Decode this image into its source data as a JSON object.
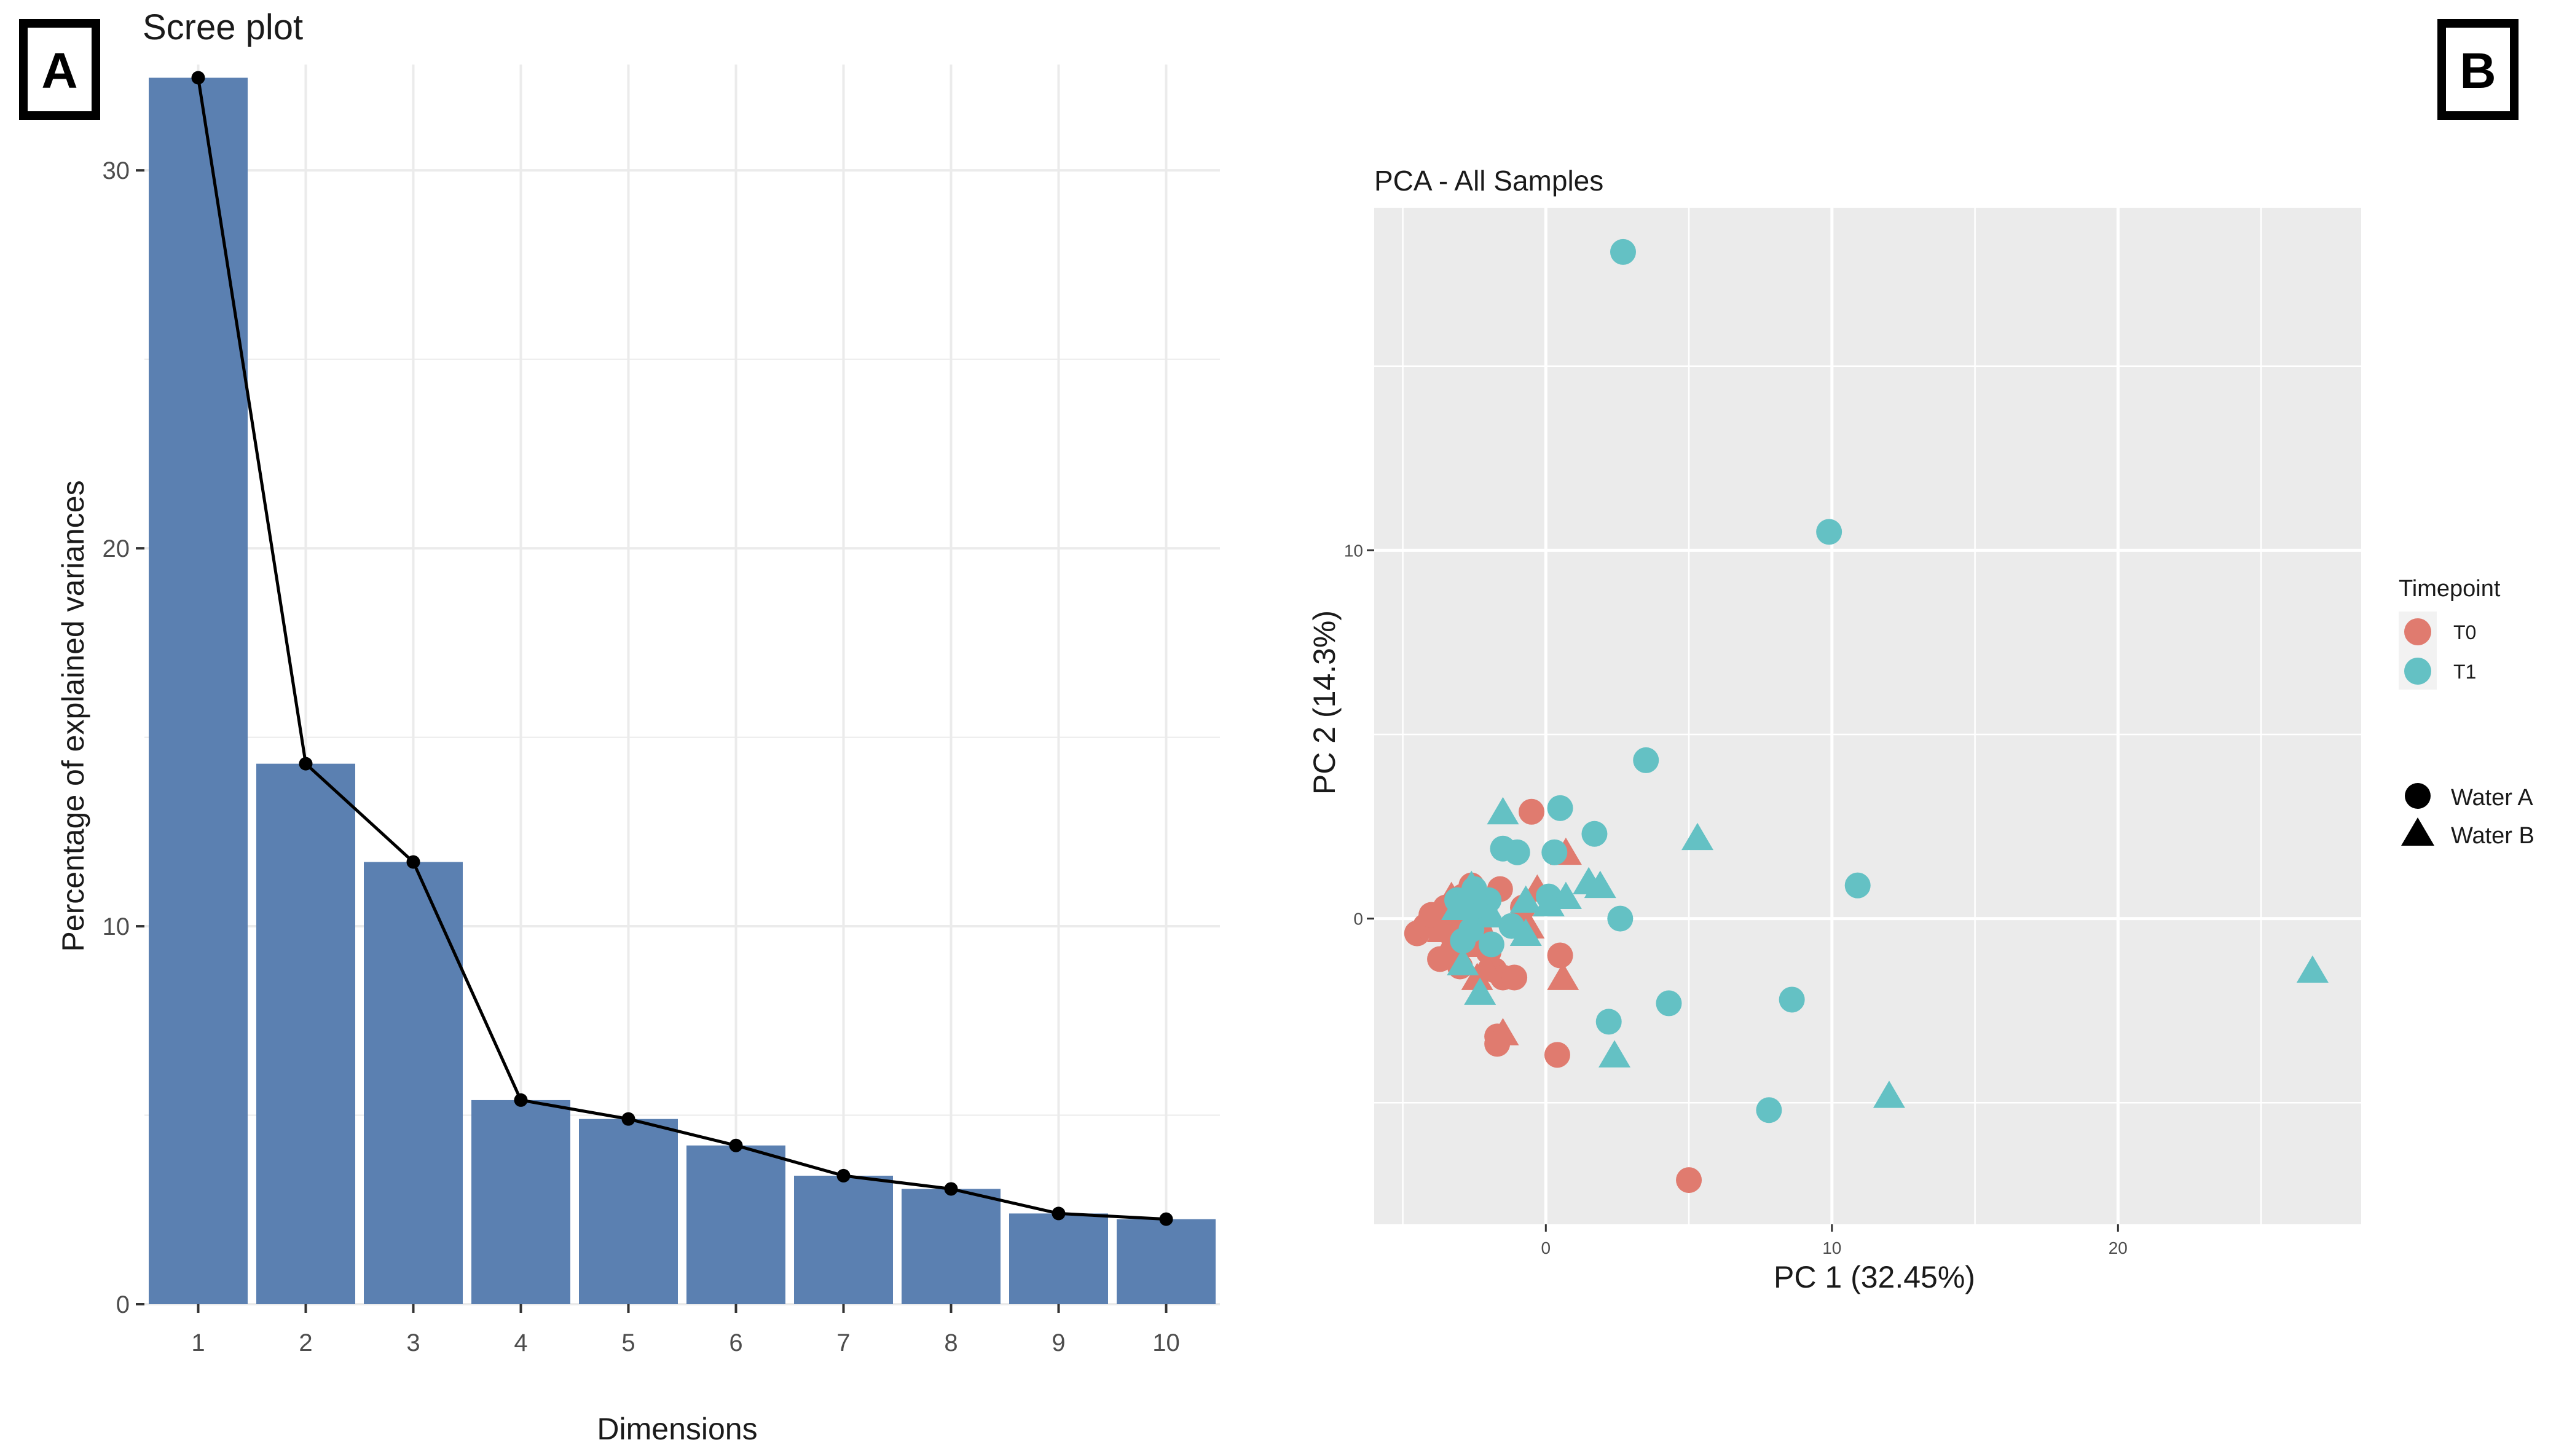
{
  "panels": {
    "a_label": "A",
    "b_label": "B"
  },
  "chart_data": [
    {
      "type": "bar",
      "title": "Scree plot",
      "xlabel": "Dimensions",
      "ylabel": "Percentage of explained variances",
      "categories": [
        "1",
        "2",
        "3",
        "4",
        "5",
        "6",
        "7",
        "8",
        "9",
        "10"
      ],
      "values": [
        32.45,
        14.3,
        11.7,
        5.4,
        4.9,
        4.2,
        3.4,
        3.05,
        2.4,
        2.25
      ],
      "line_overlay": true,
      "ylim": [
        0,
        32.8
      ],
      "yticks": [
        0,
        10,
        20,
        30
      ],
      "grid": true,
      "colors": {
        "bar": "#5b80b1",
        "line": "#000000",
        "grid": "#ebebeb",
        "axis_text": "#4d4d4d"
      }
    },
    {
      "type": "scatter",
      "title": "PCA - All Samples",
      "xlabel": "PC 1 (32.45%)",
      "ylabel": "PC 2 (14.3%)",
      "xlim": [
        -6,
        28.5
      ],
      "ylim": [
        -8.3,
        19.3
      ],
      "xticks": [
        0,
        10,
        20
      ],
      "yticks": [
        0,
        10
      ],
      "grid": true,
      "legend": {
        "position": "right",
        "color_title": "Timepoint",
        "color_items": [
          {
            "label": "T0",
            "color": "#e07b6f"
          },
          {
            "label": "T1",
            "color": "#64c1c4"
          }
        ],
        "shape_items": [
          {
            "label": "Water A",
            "shape": "circle"
          },
          {
            "label": "Water B",
            "shape": "triangle"
          }
        ]
      },
      "colors": {
        "panel_bg": "#ebebeb",
        "grid": "#ffffff",
        "T0": "#e07b6f",
        "T1": "#64c1c4",
        "axis_text": "#4d4d4d"
      },
      "series": [
        {
          "name": "T0 Water A",
          "color": "T0",
          "shape": "circle",
          "points": [
            [
              -4.5,
              -0.4
            ],
            [
              -4.2,
              -0.2
            ],
            [
              -4.0,
              0.1
            ],
            [
              -3.7,
              -1.1
            ],
            [
              -3.5,
              0.3
            ],
            [
              -3.2,
              -0.6
            ],
            [
              -2.9,
              0.6
            ],
            [
              -2.6,
              0.9
            ],
            [
              -2.3,
              -0.4
            ],
            [
              -2.0,
              -0.9
            ],
            [
              -1.8,
              -1.4
            ],
            [
              -1.5,
              -1.6
            ],
            [
              -2.7,
              -0.2
            ],
            [
              -3.0,
              -1.3
            ],
            [
              -1.6,
              0.8
            ],
            [
              -0.5,
              2.9
            ],
            [
              0.5,
              -1.0
            ],
            [
              -1.1,
              -1.6
            ],
            [
              -1.7,
              -3.2
            ],
            [
              -1.7,
              -3.4
            ],
            [
              0.4,
              -3.7
            ],
            [
              5.0,
              -7.1
            ],
            [
              -0.8,
              0.3
            ],
            [
              -3.4,
              0.0
            ]
          ]
        },
        {
          "name": "T0 Water B",
          "color": "T0",
          "shape": "triangle",
          "points": [
            [
              -3.3,
              0.6
            ],
            [
              -3.0,
              0.3
            ],
            [
              -3.6,
              -0.3
            ],
            [
              -3.5,
              -0.9
            ],
            [
              -2.4,
              -1.6
            ],
            [
              -2.1,
              -1.3
            ],
            [
              -2.7,
              -0.7
            ],
            [
              -1.5,
              -3.1
            ],
            [
              0.7,
              1.8
            ],
            [
              -0.3,
              0.8
            ],
            [
              0.6,
              -1.6
            ],
            [
              -0.6,
              -0.2
            ],
            [
              -2.0,
              0.2
            ]
          ]
        },
        {
          "name": "T1 Water A",
          "color": "T1",
          "shape": "circle",
          "points": [
            [
              2.7,
              18.1
            ],
            [
              9.9,
              10.5
            ],
            [
              3.5,
              4.3
            ],
            [
              0.5,
              3.0
            ],
            [
              1.7,
              2.3
            ],
            [
              0.3,
              1.8
            ],
            [
              -1.5,
              1.9
            ],
            [
              -1.0,
              1.8
            ],
            [
              10.9,
              0.9
            ],
            [
              2.6,
              0.0
            ],
            [
              4.3,
              -2.3
            ],
            [
              8.6,
              -2.2
            ],
            [
              2.2,
              -2.8
            ],
            [
              7.8,
              -5.2
            ],
            [
              -2.0,
              0.5
            ],
            [
              -2.5,
              0.8
            ],
            [
              -2.8,
              0.3
            ],
            [
              -2.3,
              0.1
            ],
            [
              0.1,
              0.6
            ],
            [
              -1.9,
              -0.7
            ],
            [
              -2.6,
              -0.3
            ],
            [
              -3.1,
              0.5
            ],
            [
              -1.2,
              -0.2
            ],
            [
              -2.9,
              -0.6
            ]
          ]
        },
        {
          "name": "T1 Water B",
          "color": "T1",
          "shape": "triangle",
          "points": [
            [
              -1.5,
              2.9
            ],
            [
              5.3,
              2.2
            ],
            [
              1.5,
              1.0
            ],
            [
              1.9,
              0.9
            ],
            [
              0.7,
              0.6
            ],
            [
              -0.7,
              0.5
            ],
            [
              -3.1,
              0.3
            ],
            [
              -2.9,
              -1.2
            ],
            [
              -2.3,
              -2.0
            ],
            [
              -0.7,
              -0.4
            ],
            [
              2.4,
              -3.7
            ],
            [
              12.0,
              -4.8
            ],
            [
              26.8,
              -1.4
            ],
            [
              -1.9,
              0.1
            ],
            [
              -2.6,
              0.9
            ],
            [
              0.1,
              0.4
            ]
          ]
        }
      ]
    }
  ]
}
